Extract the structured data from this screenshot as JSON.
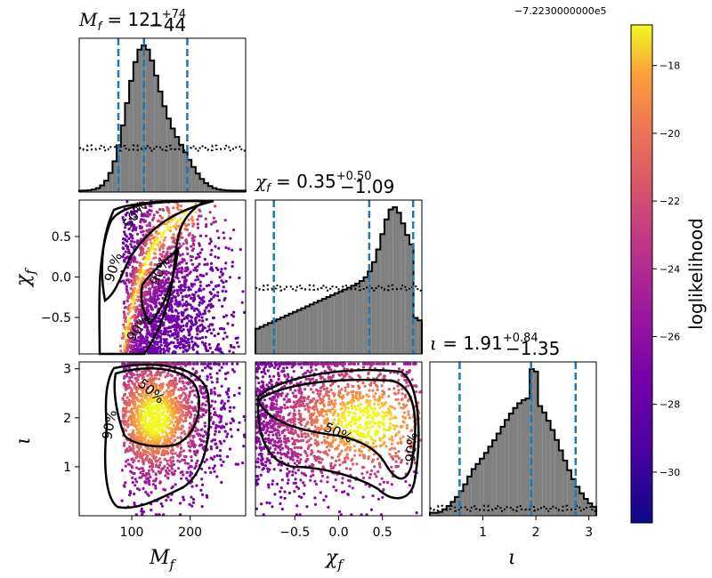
{
  "chart_data": {
    "type": "corner",
    "parameters": [
      "M_f",
      "chi_f",
      "iota"
    ],
    "marginals": [
      {
        "title_value": "121",
        "title_plus": "+74",
        "title_minus": "−44",
        "label": "M_f",
        "xlim": [
          10,
          295
        ],
        "quantiles": [
          77,
          121,
          195
        ],
        "kind": "M"
      },
      {
        "title_value": "0.35",
        "title_plus": "+0.50",
        "title_minus": "−1.09",
        "label": "chi_f",
        "xlim": [
          -0.95,
          0.95
        ],
        "quantiles": [
          -0.74,
          0.35,
          0.85
        ],
        "kind": "chi"
      },
      {
        "title_value": "1.91",
        "title_plus": "+0.84",
        "title_minus": "−1.35",
        "label": "iota",
        "xlim": [
          0.0,
          3.14
        ],
        "quantiles": [
          0.56,
          1.91,
          2.75
        ],
        "kind": "iota"
      }
    ],
    "titles": {
      "m": {
        "prefix": "M",
        "sub": "f",
        "eq": " = 121",
        "plus": "+74",
        "minus": "−44"
      },
      "chi": {
        "prefix": "χ",
        "sub": "f",
        "eq": " = 0.35",
        "plus": "+0.50",
        "minus": "−1.09"
      },
      "iota": {
        "prefix": "ι",
        "sub": "",
        "eq": " = 1.91",
        "plus": "+0.84",
        "minus": "−1.35"
      }
    },
    "axis_labels": {
      "x1": "M",
      "x1sub": "f",
      "x2": "χ",
      "x2sub": "f",
      "x3": "ι",
      "y2": "χ",
      "y2sub": "f",
      "y3": "ι"
    },
    "ticks": {
      "m": [
        "100",
        "200"
      ],
      "chi_x": [
        "−0.5",
        "0.0",
        "0.5"
      ],
      "chi_y": [
        "0.5",
        "0.0",
        "−0.5"
      ],
      "iota_x": [
        "1",
        "2",
        "3"
      ],
      "iota_y": [
        "3",
        "2",
        "1"
      ]
    },
    "contour_labels": {
      "c50": "50%",
      "c90": "90%"
    },
    "colorbar": {
      "label": "loglikelihood",
      "offset_text": "−7.2230000000e5",
      "ticks": [
        "−18",
        "−20",
        "−22",
        "−24",
        "−26",
        "−28",
        "−30"
      ],
      "range": [
        -31.5,
        -16.8
      ],
      "colormap": "plasma"
    },
    "colors": {
      "hist": "#808080",
      "quantile": "#1f77b4",
      "contour": "#000000"
    }
  }
}
